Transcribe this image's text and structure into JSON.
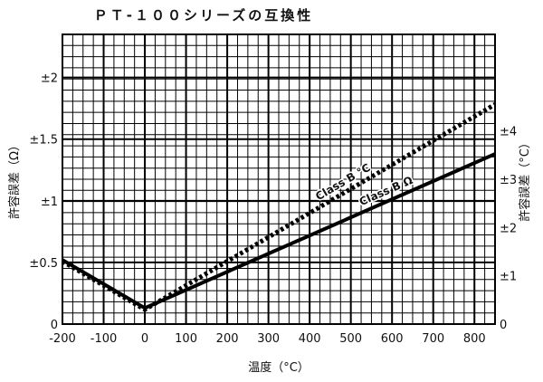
{
  "chart_data": {
    "type": "line",
    "title": "ＰＴ-１００シリーズの互換性",
    "xlabel": "温度（°C）",
    "ylabel_left": "許容誤差（Ω）",
    "ylabel_right": "許容誤差（°C）",
    "xlim": [
      -200,
      850
    ],
    "ylim_left": [
      0,
      2.35
    ],
    "ylim_right": [
      0,
      6.0
    ],
    "x_ticks": [
      -200,
      -100,
      0,
      100,
      200,
      300,
      400,
      500,
      600,
      700,
      800
    ],
    "x_tick_labels": [
      "-200",
      "-100",
      "0",
      "100",
      "200",
      "300",
      "400",
      "500",
      "600",
      "700",
      "800"
    ],
    "y_left_ticks": [
      0,
      0.5,
      1,
      1.5,
      2
    ],
    "y_left_tick_labels": [
      "0",
      "±0.5",
      "±1",
      "±1.5",
      "±2"
    ],
    "y_right_ticks": [
      0,
      1,
      2,
      3,
      4
    ],
    "y_right_tick_labels": [
      "0",
      "±1",
      "±2",
      "±3",
      "±4"
    ],
    "grid": true,
    "series": [
      {
        "name": "Class B °C",
        "axis": "right",
        "style": "dotted",
        "x": [
          -200,
          0,
          850
        ],
        "y": [
          1.3,
          0.3,
          4.55
        ]
      },
      {
        "name": "Class B Ω",
        "axis": "left",
        "style": "solid",
        "x": [
          -200,
          0,
          850
        ],
        "y": [
          0.52,
          0.13,
          1.38
        ]
      }
    ]
  }
}
